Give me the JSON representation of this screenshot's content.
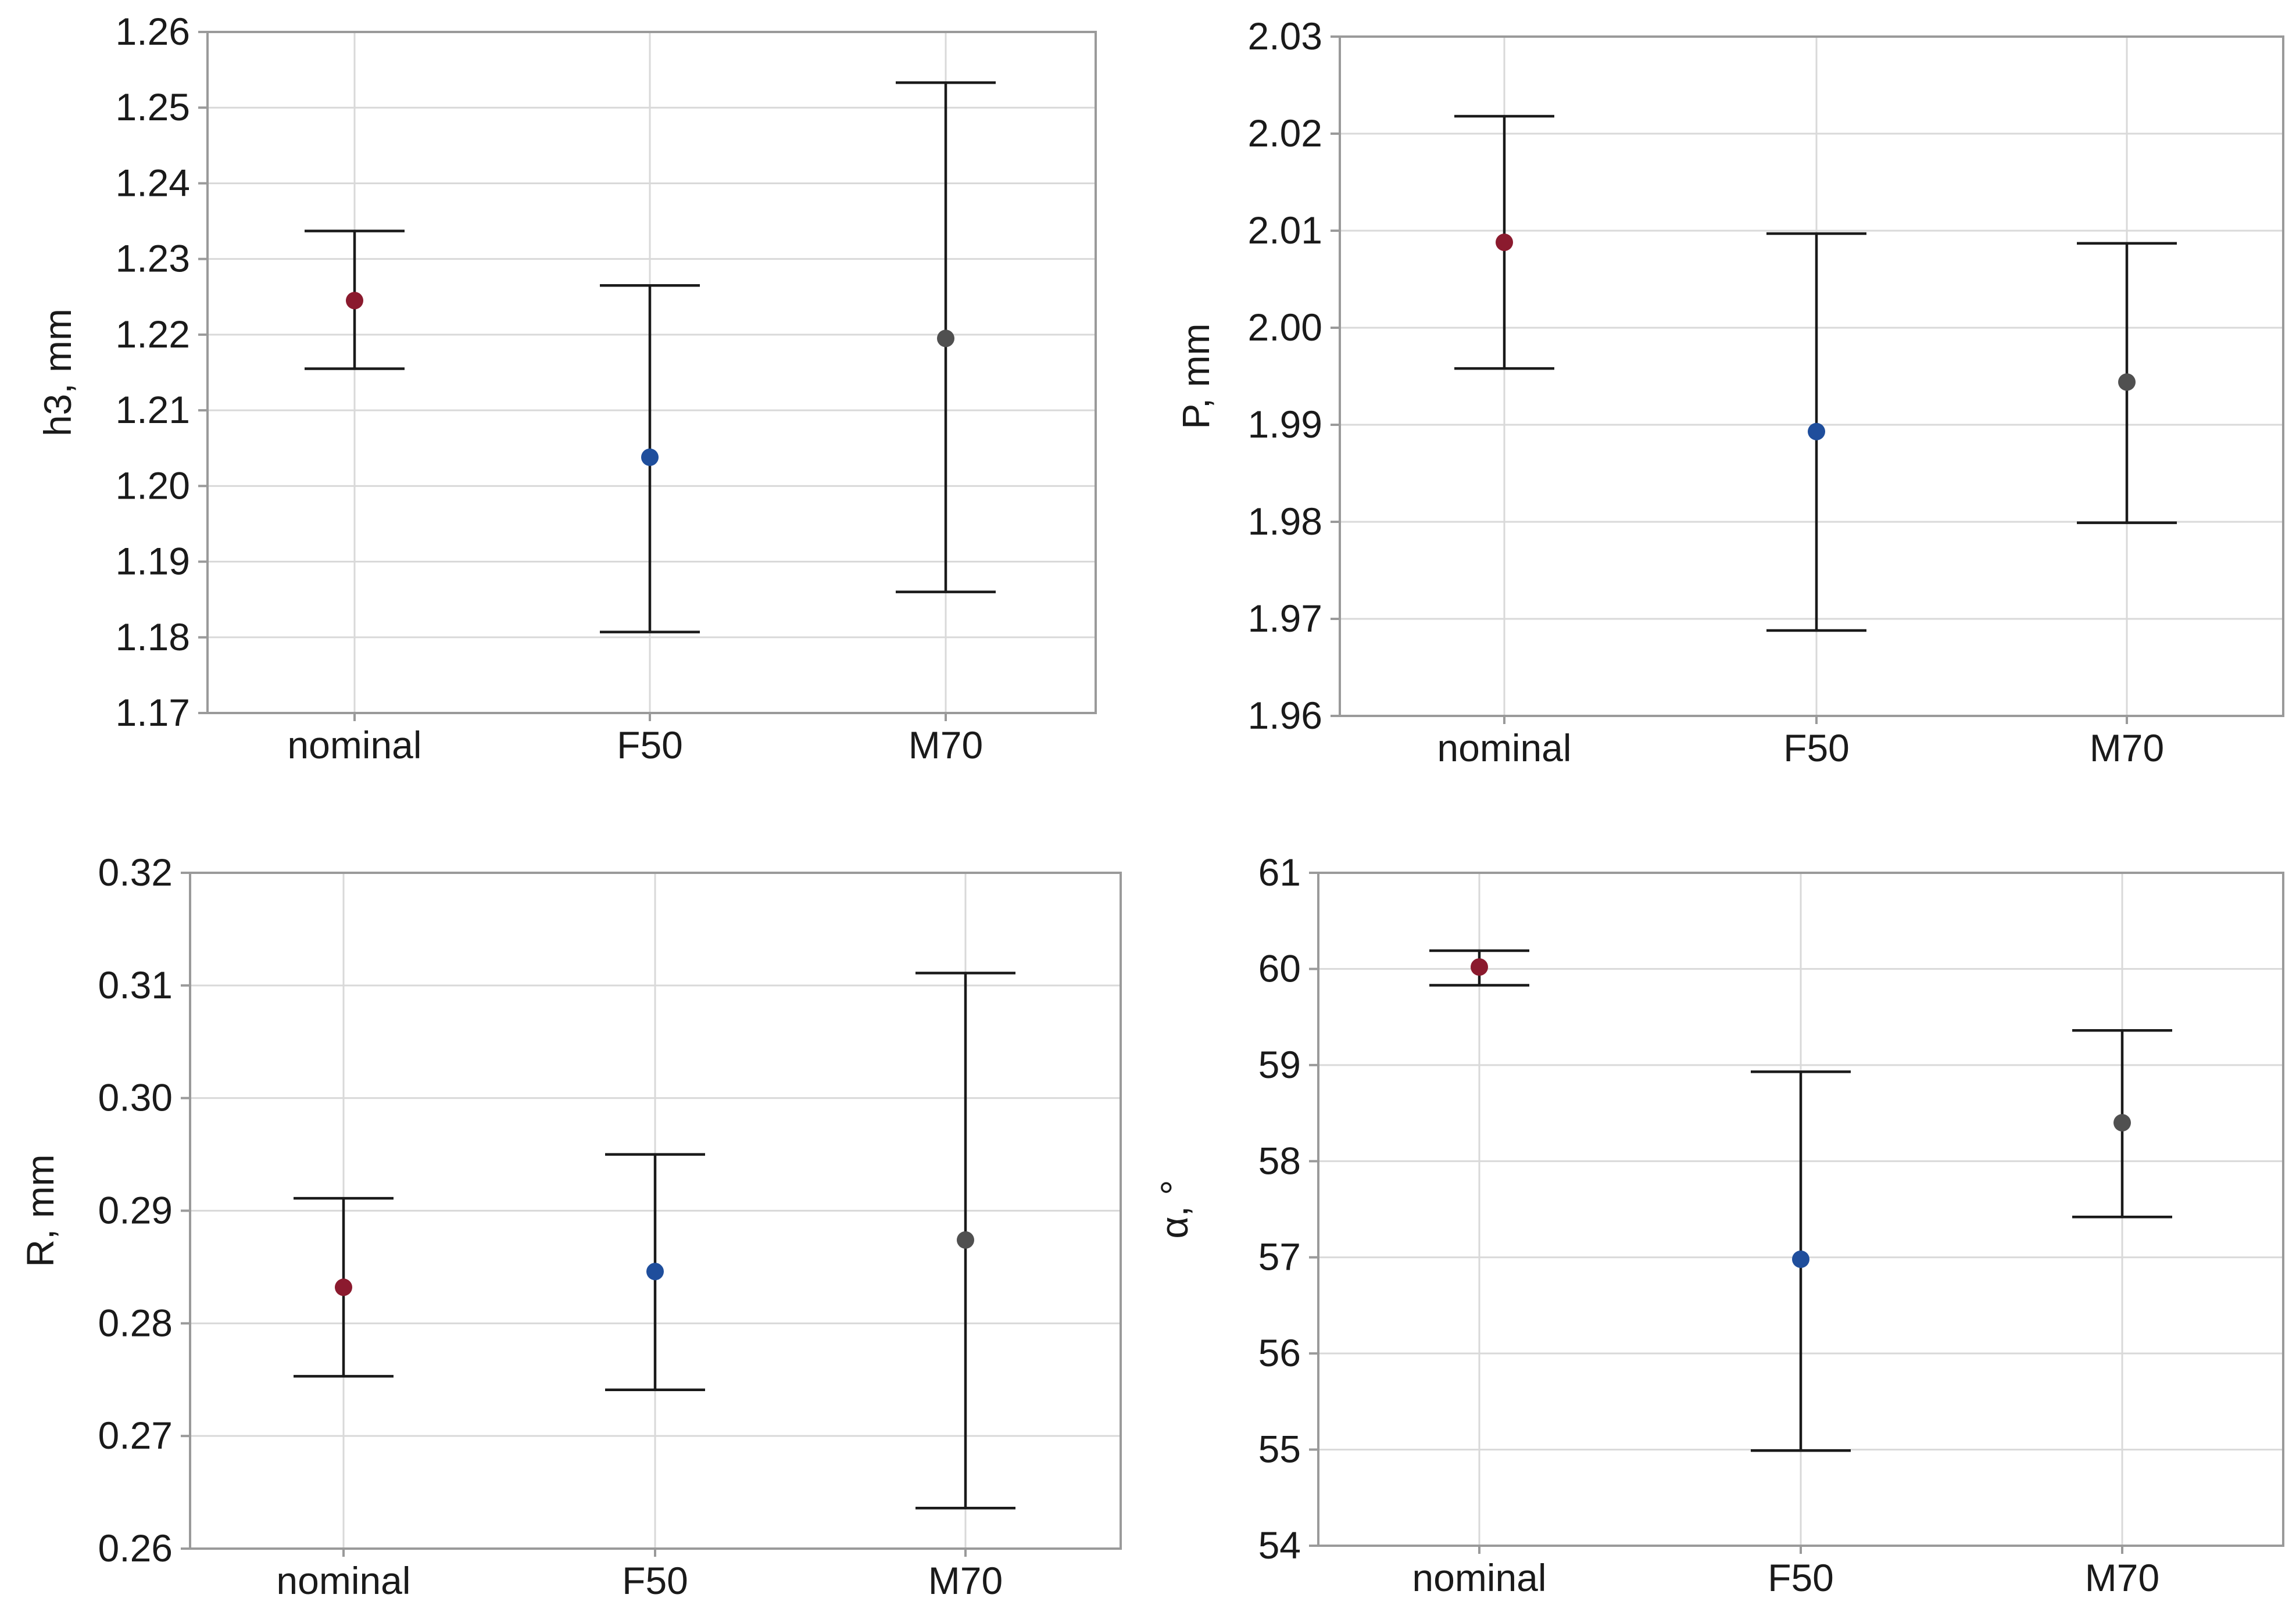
{
  "chart_data": [
    {
      "type": "errorbar",
      "name": "h3",
      "ylabel": "h3, mm",
      "categories": [
        "nominal",
        "F50",
        "M70"
      ],
      "series": [
        {
          "category": "nominal",
          "mean": 1.2245,
          "lower": 1.2155,
          "upper": 1.2337,
          "color": "#8B1A2E"
        },
        {
          "category": "F50",
          "mean": 1.2038,
          "lower": 1.1807,
          "upper": 1.2265,
          "color": "#1F4E9C"
        },
        {
          "category": "M70",
          "mean": 1.2195,
          "lower": 1.186,
          "upper": 1.2533,
          "color": "#505050"
        }
      ],
      "ylim": [
        1.17,
        1.26
      ],
      "yticks": [
        "1.17",
        "1.18",
        "1.19",
        "1.20",
        "1.21",
        "1.22",
        "1.23",
        "1.24",
        "1.25",
        "1.26"
      ],
      "grid": true
    },
    {
      "type": "errorbar",
      "name": "P",
      "ylabel": "P, mm",
      "categories": [
        "nominal",
        "F50",
        "M70"
      ],
      "series": [
        {
          "category": "nominal",
          "mean": 2.0088,
          "lower": 1.9958,
          "upper": 2.0218,
          "color": "#8B1A2E"
        },
        {
          "category": "F50",
          "mean": 1.9893,
          "lower": 1.9688,
          "upper": 2.0097,
          "color": "#1F4E9C"
        },
        {
          "category": "M70",
          "mean": 1.9944,
          "lower": 1.9799,
          "upper": 2.0087,
          "color": "#505050"
        }
      ],
      "ylim": [
        1.96,
        2.03
      ],
      "yticks": [
        "1.96",
        "1.97",
        "1.98",
        "1.99",
        "2.00",
        "2.01",
        "2.02",
        "2.03"
      ],
      "grid": true
    },
    {
      "type": "errorbar",
      "name": "R",
      "ylabel": "R, mm",
      "categories": [
        "nominal",
        "F50",
        "M70"
      ],
      "series": [
        {
          "category": "nominal",
          "mean": 0.2832,
          "lower": 0.2753,
          "upper": 0.2911,
          "color": "#8B1A2E"
        },
        {
          "category": "F50",
          "mean": 0.2846,
          "lower": 0.2741,
          "upper": 0.295,
          "color": "#1F4E9C"
        },
        {
          "category": "M70",
          "mean": 0.2874,
          "lower": 0.2636,
          "upper": 0.3111,
          "color": "#505050"
        }
      ],
      "ylim": [
        0.26,
        0.32
      ],
      "yticks": [
        "0.26",
        "0.27",
        "0.28",
        "0.29",
        "0.30",
        "0.31",
        "0.32"
      ],
      "grid": true
    },
    {
      "type": "errorbar",
      "name": "alpha",
      "ylabel": "α, °",
      "categories": [
        "nominal",
        "F50",
        "M70"
      ],
      "series": [
        {
          "category": "nominal",
          "mean": 60.02,
          "lower": 59.83,
          "upper": 60.19,
          "color": "#8B1A2E"
        },
        {
          "category": "F50",
          "mean": 56.98,
          "lower": 54.99,
          "upper": 58.93,
          "color": "#1F4E9C"
        },
        {
          "category": "M70",
          "mean": 58.4,
          "lower": 57.42,
          "upper": 59.36,
          "color": "#505050"
        }
      ],
      "ylim": [
        54,
        61
      ],
      "yticks": [
        "54",
        "55",
        "56",
        "57",
        "58",
        "59",
        "60",
        "61"
      ],
      "grid": true
    }
  ]
}
